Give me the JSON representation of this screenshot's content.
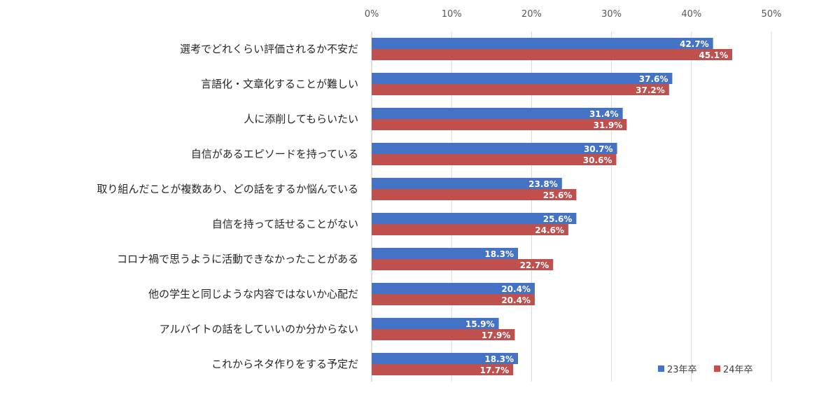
{
  "chart_data": {
    "type": "bar",
    "orientation": "horizontal",
    "categories": [
      "選考でどれくらい評価されるか不安だ",
      "言語化・文章化することが難しい",
      "人に添削してもらいたい",
      "自信があるエピソードを持っている",
      "取り組んだことが複数あり、どの話をするか悩んでいる",
      "自信を持って話せることがない",
      "コロナ禍で思うように活動できなかったことがある",
      "他の学生と同じような内容ではないか心配だ",
      "アルバイトの話をしていいのか分からない",
      "これからネタ作りをする予定だ"
    ],
    "series": [
      {
        "name": "23年卒",
        "color": "#4472c4",
        "values": [
          42.7,
          37.6,
          31.4,
          30.7,
          23.8,
          25.6,
          18.3,
          20.4,
          15.9,
          18.3
        ],
        "labels": [
          "42.7%",
          "37.6%",
          "31.4%",
          "30.7%",
          "23.8%",
          "25.6%",
          "18.3%",
          "20.4%",
          "15.9%",
          "18.3%"
        ]
      },
      {
        "name": "24年卒",
        "color": "#c0504d",
        "values": [
          45.1,
          37.2,
          31.9,
          30.6,
          25.6,
          24.6,
          22.7,
          20.4,
          17.9,
          17.7
        ],
        "labels": [
          "45.1%",
          "37.2%",
          "31.9%",
          "30.6%",
          "25.6%",
          "24.6%",
          "22.7%",
          "20.4%",
          "17.9%",
          "17.7%"
        ]
      }
    ],
    "xlim": [
      0,
      50
    ],
    "x_ticks": [
      "0%",
      "10%",
      "20%",
      "30%",
      "40%",
      "50%"
    ],
    "x_tick_values": [
      0,
      10,
      20,
      30,
      40,
      50
    ],
    "axis_position": "top",
    "grid": true,
    "legend_position": "bottom-right",
    "title": "",
    "xlabel": "",
    "ylabel": ""
  }
}
